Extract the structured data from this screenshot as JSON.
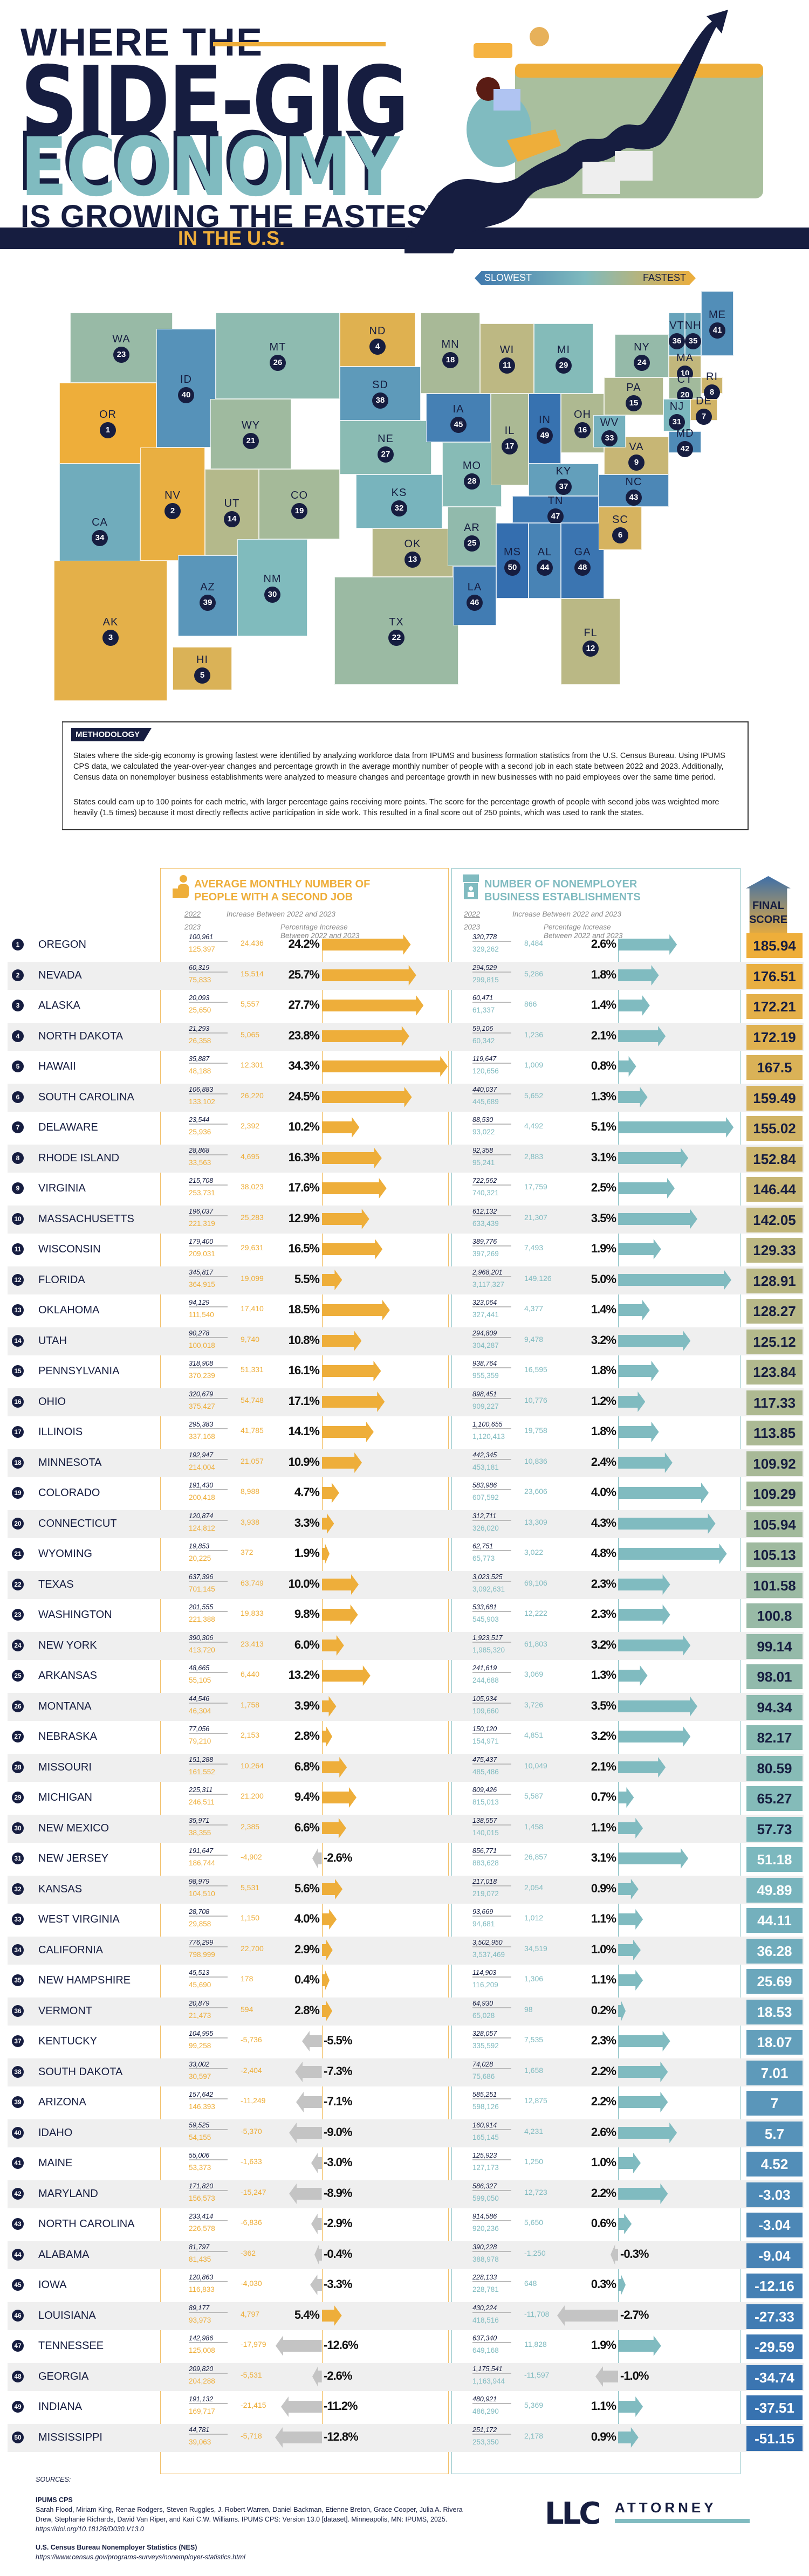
{
  "header": {
    "line1": "WHERE THE",
    "line2": "SIDE-GIG",
    "line3": "ECONOMY",
    "line4": "IS GROWING THE FASTEST",
    "line5": "IN THE U.S."
  },
  "colors": {
    "navy": "#161d40",
    "gold": "#eeae3a",
    "teal": "#80bbc0",
    "grey_arrow": "#c4c4c4",
    "row_alt": "#efefef"
  },
  "map": {
    "legend": {
      "slowest": "SLOWEST",
      "fastest": "FASTEST"
    },
    "states": [
      {
        "ab": "WA",
        "rank": 23
      },
      {
        "ab": "OR",
        "rank": 1
      },
      {
        "ab": "CA",
        "rank": 34
      },
      {
        "ab": "ID",
        "rank": 40
      },
      {
        "ab": "NV",
        "rank": 2
      },
      {
        "ab": "MT",
        "rank": 26
      },
      {
        "ab": "WY",
        "rank": 21
      },
      {
        "ab": "UT",
        "rank": 14
      },
      {
        "ab": "AZ",
        "rank": 39
      },
      {
        "ab": "CO",
        "rank": 19
      },
      {
        "ab": "NM",
        "rank": 30
      },
      {
        "ab": "ND",
        "rank": 4
      },
      {
        "ab": "SD",
        "rank": 38
      },
      {
        "ab": "NE",
        "rank": 27
      },
      {
        "ab": "KS",
        "rank": 32
      },
      {
        "ab": "OK",
        "rank": 13
      },
      {
        "ab": "TX",
        "rank": 22
      },
      {
        "ab": "MN",
        "rank": 18
      },
      {
        "ab": "IA",
        "rank": 45
      },
      {
        "ab": "MO",
        "rank": 28
      },
      {
        "ab": "AR",
        "rank": 25
      },
      {
        "ab": "LA",
        "rank": 46
      },
      {
        "ab": "WI",
        "rank": 11
      },
      {
        "ab": "IL",
        "rank": 17
      },
      {
        "ab": "MI",
        "rank": 29
      },
      {
        "ab": "IN",
        "rank": 49
      },
      {
        "ab": "OH",
        "rank": 16
      },
      {
        "ab": "KY",
        "rank": 37
      },
      {
        "ab": "TN",
        "rank": 47
      },
      {
        "ab": "MS",
        "rank": 50
      },
      {
        "ab": "AL",
        "rank": 44
      },
      {
        "ab": "GA",
        "rank": 48
      },
      {
        "ab": "FL",
        "rank": 12
      },
      {
        "ab": "SC",
        "rank": 6
      },
      {
        "ab": "NC",
        "rank": 43
      },
      {
        "ab": "VA",
        "rank": 9
      },
      {
        "ab": "WV",
        "rank": 33
      },
      {
        "ab": "PA",
        "rank": 15
      },
      {
        "ab": "NY",
        "rank": 24
      },
      {
        "ab": "VT",
        "rank": 36
      },
      {
        "ab": "NH",
        "rank": 35
      },
      {
        "ab": "ME",
        "rank": 41
      },
      {
        "ab": "MA",
        "rank": 10
      },
      {
        "ab": "RI",
        "rank": 8
      },
      {
        "ab": "CT",
        "rank": 20
      },
      {
        "ab": "NJ",
        "rank": 31
      },
      {
        "ab": "DE",
        "rank": 7
      },
      {
        "ab": "MD",
        "rank": 42
      },
      {
        "ab": "AK",
        "rank": 3
      },
      {
        "ab": "HI",
        "rank": 5
      }
    ]
  },
  "methodology": {
    "title": "METHODOLOGY",
    "p1": "States where the side-gig economy is growing fastest were identified by analyzing workforce data from IPUMS and business formation statistics from the U.S. Census Bureau. Using IPUMS CPS data, we calculated the year-over-year changes and percentage growth in the average monthly number of people with a second job in each state between 2022 and 2023. Additionally, Census data on nonemployer business establishments were analyzed to measure changes and percentage growth in new businesses with no paid employees over the same time period.",
    "p2": "States could earn up to 100 points for each metric, with larger percentage gains receiving more points. The score for the percentage growth of people with second jobs was weighted more heavily (1.5 times) because it most directly reflects active participation in side work. This resulted in a final score out of 250 points, which was used to rank the states."
  },
  "table": {
    "group1_title_a": "AVERAGE MONTHLY NUMBER OF",
    "group1_title_b": "PEOPLE WITH A SECOND JOB",
    "group2_title_a": "NUMBER OF NONEMPLOYER",
    "group2_title_b": "BUSINESS ESTABLISHMENTS",
    "year_a": "2022",
    "year_b": "2023",
    "increase_label": "Increase Between 2022 and 2023",
    "pct_label_a": "Percentage Increase",
    "pct_label_b": "Between 2022 and 2023",
    "final_a": "FINAL",
    "final_b": "SCORE"
  },
  "chart_data": {
    "type": "table",
    "title": "Where the Side-Gig Economy Is Growing the Fastest in the U.S.",
    "columns": [
      "rank",
      "state",
      "second_job_2022",
      "second_job_2023",
      "second_job_increase",
      "second_job_pct",
      "nonemp_2022",
      "nonemp_2023",
      "nonemp_increase",
      "nonemp_pct",
      "final_score"
    ],
    "rows": [
      [
        1,
        "OREGON",
        "100,961",
        "125,397",
        "24,436",
        24.2,
        "320,778",
        "329,262",
        "8,484",
        2.6,
        "185.94"
      ],
      [
        2,
        "NEVADA",
        "60,319",
        "75,833",
        "15,514",
        25.7,
        "294,529",
        "299,815",
        "5,286",
        1.8,
        "176.51"
      ],
      [
        3,
        "ALASKA",
        "20,093",
        "25,650",
        "5,557",
        27.7,
        "60,471",
        "61,337",
        "866",
        1.4,
        "172.21"
      ],
      [
        4,
        "NORTH DAKOTA",
        "21,293",
        "26,358",
        "5,065",
        23.8,
        "59,106",
        "60,342",
        "1,236",
        2.1,
        "172.19"
      ],
      [
        5,
        "HAWAII",
        "35,887",
        "48,188",
        "12,301",
        34.3,
        "119,647",
        "120,656",
        "1,009",
        0.8,
        "167.5"
      ],
      [
        6,
        "SOUTH CAROLINA",
        "106,883",
        "133,102",
        "26,220",
        24.5,
        "440,037",
        "445,689",
        "5,652",
        1.3,
        "159.49"
      ],
      [
        7,
        "DELAWARE",
        "23,544",
        "25,936",
        "2,392",
        10.2,
        "88,530",
        "93,022",
        "4,492",
        5.1,
        "155.02"
      ],
      [
        8,
        "RHODE ISLAND",
        "28,868",
        "33,563",
        "4,695",
        16.3,
        "92,358",
        "95,241",
        "2,883",
        3.1,
        "152.84"
      ],
      [
        9,
        "VIRGINIA",
        "215,708",
        "253,731",
        "38,023",
        17.6,
        "722,562",
        "740,321",
        "17,759",
        2.5,
        "146.44"
      ],
      [
        10,
        "MASSACHUSETTS",
        "196,037",
        "221,319",
        "25,283",
        12.9,
        "612,132",
        "633,439",
        "21,307",
        3.5,
        "142.05"
      ],
      [
        11,
        "WISCONSIN",
        "179,400",
        "209,031",
        "29,631",
        16.5,
        "389,776",
        "397,269",
        "7,493",
        1.9,
        "129.33"
      ],
      [
        12,
        "FLORIDA",
        "345,817",
        "364,915",
        "19,099",
        5.5,
        "2,968,201",
        "3,117,327",
        "149,126",
        5.0,
        "128.91"
      ],
      [
        13,
        "OKLAHOMA",
        "94,129",
        "111,540",
        "17,410",
        18.5,
        "323,064",
        "327,441",
        "4,377",
        1.4,
        "128.27"
      ],
      [
        14,
        "UTAH",
        "90,278",
        "100,018",
        "9,740",
        10.8,
        "294,809",
        "304,287",
        "9,478",
        3.2,
        "125.12"
      ],
      [
        15,
        "PENNSYLVANIA",
        "318,908",
        "370,239",
        "51,331",
        16.1,
        "938,764",
        "955,359",
        "16,595",
        1.8,
        "123.84"
      ],
      [
        16,
        "OHIO",
        "320,679",
        "375,427",
        "54,748",
        17.1,
        "898,451",
        "909,227",
        "10,776",
        1.2,
        "117.33"
      ],
      [
        17,
        "ILLINOIS",
        "295,383",
        "337,168",
        "41,785",
        14.1,
        "1,100,655",
        "1,120,413",
        "19,758",
        1.8,
        "113.85"
      ],
      [
        18,
        "MINNESOTA",
        "192,947",
        "214,004",
        "21,057",
        10.9,
        "442,345",
        "453,181",
        "10,836",
        2.4,
        "109.92"
      ],
      [
        19,
        "COLORADO",
        "191,430",
        "200,418",
        "8,988",
        4.7,
        "583,986",
        "607,592",
        "23,606",
        4.0,
        "109.29"
      ],
      [
        20,
        "CONNECTICUT",
        "120,874",
        "124,812",
        "3,938",
        3.3,
        "312,711",
        "326,020",
        "13,309",
        4.3,
        "105.94"
      ],
      [
        21,
        "WYOMING",
        "19,853",
        "20,225",
        "372",
        1.9,
        "62,751",
        "65,773",
        "3,022",
        4.8,
        "105.13"
      ],
      [
        22,
        "TEXAS",
        "637,396",
        "701,145",
        "63,749",
        10.0,
        "3,023,525",
        "3,092,631",
        "69,106",
        2.3,
        "101.58"
      ],
      [
        23,
        "WASHINGTON",
        "201,555",
        "221,388",
        "19,833",
        9.8,
        "533,681",
        "545,903",
        "12,222",
        2.3,
        "100.8"
      ],
      [
        24,
        "NEW YORK",
        "390,306",
        "413,720",
        "23,413",
        6.0,
        "1,923,517",
        "1,985,320",
        "61,803",
        3.2,
        "99.14"
      ],
      [
        25,
        "ARKANSAS",
        "48,665",
        "55,105",
        "6,440",
        13.2,
        "241,619",
        "244,688",
        "3,069",
        1.3,
        "98.01"
      ],
      [
        26,
        "MONTANA",
        "44,546",
        "46,304",
        "1,758",
        3.9,
        "105,934",
        "109,660",
        "3,726",
        3.5,
        "94.34"
      ],
      [
        27,
        "NEBRASKA",
        "77,056",
        "79,210",
        "2,153",
        2.8,
        "150,120",
        "154,971",
        "4,851",
        3.2,
        "82.17"
      ],
      [
        28,
        "MISSOURI",
        "151,288",
        "161,552",
        "10,264",
        6.8,
        "475,437",
        "485,486",
        "10,049",
        2.1,
        "80.59"
      ],
      [
        29,
        "MICHIGAN",
        "225,311",
        "246,511",
        "21,200",
        9.4,
        "809,426",
        "815,013",
        "5,587",
        0.7,
        "65.27"
      ],
      [
        30,
        "NEW MEXICO",
        "35,971",
        "38,355",
        "2,385",
        6.6,
        "138,557",
        "140,015",
        "1,458",
        1.1,
        "57.73"
      ],
      [
        31,
        "NEW JERSEY",
        "191,647",
        "186,744",
        "-4,902",
        -2.6,
        "856,771",
        "883,628",
        "26,857",
        3.1,
        "51.18"
      ],
      [
        32,
        "KANSAS",
        "98,979",
        "104,510",
        "5,531",
        5.6,
        "217,018",
        "219,072",
        "2,054",
        0.9,
        "49.89"
      ],
      [
        33,
        "WEST VIRGINIA",
        "28,708",
        "29,858",
        "1,150",
        4.0,
        "93,669",
        "94,681",
        "1,012",
        1.1,
        "44.11"
      ],
      [
        34,
        "CALIFORNIA",
        "776,299",
        "798,999",
        "22,700",
        2.9,
        "3,502,950",
        "3,537,469",
        "34,519",
        1.0,
        "36.28"
      ],
      [
        35,
        "NEW HAMPSHIRE",
        "45,513",
        "45,690",
        "178",
        0.4,
        "114,903",
        "116,209",
        "1,306",
        1.1,
        "25.69"
      ],
      [
        36,
        "VERMONT",
        "20,879",
        "21,473",
        "594",
        2.8,
        "64,930",
        "65,028",
        "98",
        0.2,
        "18.53"
      ],
      [
        37,
        "KENTUCKY",
        "104,995",
        "99,258",
        "-5,736",
        -5.5,
        "328,057",
        "335,592",
        "7,535",
        2.3,
        "18.07"
      ],
      [
        38,
        "SOUTH DAKOTA",
        "33,002",
        "30,597",
        "-2,404",
        -7.3,
        "74,028",
        "75,686",
        "1,658",
        2.2,
        "7.01"
      ],
      [
        39,
        "ARIZONA",
        "157,642",
        "146,393",
        "-11,249",
        -7.1,
        "585,251",
        "598,126",
        "12,875",
        2.2,
        "7"
      ],
      [
        40,
        "IDAHO",
        "59,525",
        "54,155",
        "-5,370",
        -9.0,
        "160,914",
        "165,145",
        "4,231",
        2.6,
        "5.7"
      ],
      [
        41,
        "MAINE",
        "55,006",
        "53,373",
        "-1,633",
        -3.0,
        "125,923",
        "127,173",
        "1,250",
        1.0,
        "4.52"
      ],
      [
        42,
        "MARYLAND",
        "171,820",
        "156,573",
        "-15,247",
        -8.9,
        "586,327",
        "599,050",
        "12,723",
        2.2,
        "-3.03"
      ],
      [
        43,
        "NORTH CAROLINA",
        "233,414",
        "226,578",
        "-6,836",
        -2.9,
        "914,586",
        "920,236",
        "5,650",
        0.6,
        "-3.04"
      ],
      [
        44,
        "ALABAMA",
        "81,797",
        "81,435",
        "-362",
        -0.4,
        "390,228",
        "388,978",
        "-1,250",
        -0.3,
        "-9.04"
      ],
      [
        45,
        "IOWA",
        "120,863",
        "116,833",
        "-4,030",
        -3.3,
        "228,133",
        "228,781",
        "648",
        0.3,
        "-12.16"
      ],
      [
        46,
        "LOUISIANA",
        "89,177",
        "93,973",
        "4,797",
        5.4,
        "430,224",
        "418,516",
        "-11,708",
        -2.7,
        "-27.33"
      ],
      [
        47,
        "TENNESSEE",
        "142,986",
        "125,008",
        "-17,979",
        -12.6,
        "637,340",
        "649,168",
        "11,828",
        1.9,
        "-29.59"
      ],
      [
        48,
        "GEORGIA",
        "209,820",
        "204,288",
        "-5,531",
        -2.6,
        "1,175,541",
        "1,163,944",
        "-11,597",
        -1.0,
        "-34.74"
      ],
      [
        49,
        "INDIANA",
        "191,132",
        "169,717",
        "-21,415",
        -11.2,
        "480,921",
        "486,290",
        "5,369",
        1.1,
        "-37.51"
      ],
      [
        50,
        "MISSISSIPPI",
        "44,781",
        "39,063",
        "-5,718",
        -12.8,
        "251,172",
        "253,350",
        "2,178",
        0.9,
        "-51.15"
      ]
    ]
  },
  "sources": {
    "label": "SOURCES:",
    "s1_title": "IPUMS CPS",
    "s1_text": "Sarah Flood, Miriam King, Renae Rodgers, Steven Ruggles, J. Robert Warren, Daniel Backman, Etienne Breton, Grace Cooper, Julia A. Rivera Drew, Stephanie Richards, David Van Riper, and Kari C.W. Williams. IPUMS CPS: Version 13.0 [dataset]. Minneapolis, MN: IPUMS, 2025.",
    "s1_link": "https://doi.org/10.18128/D030.V13.0",
    "s2_title": "U.S. Census Bureau Nonemployer Statistics (NES)",
    "s2_link": "https://www.census.gov/programs-surveys/nonemployer-statistics.html"
  },
  "logo": {
    "a": "LLC",
    "b": "ATTORNEY"
  }
}
